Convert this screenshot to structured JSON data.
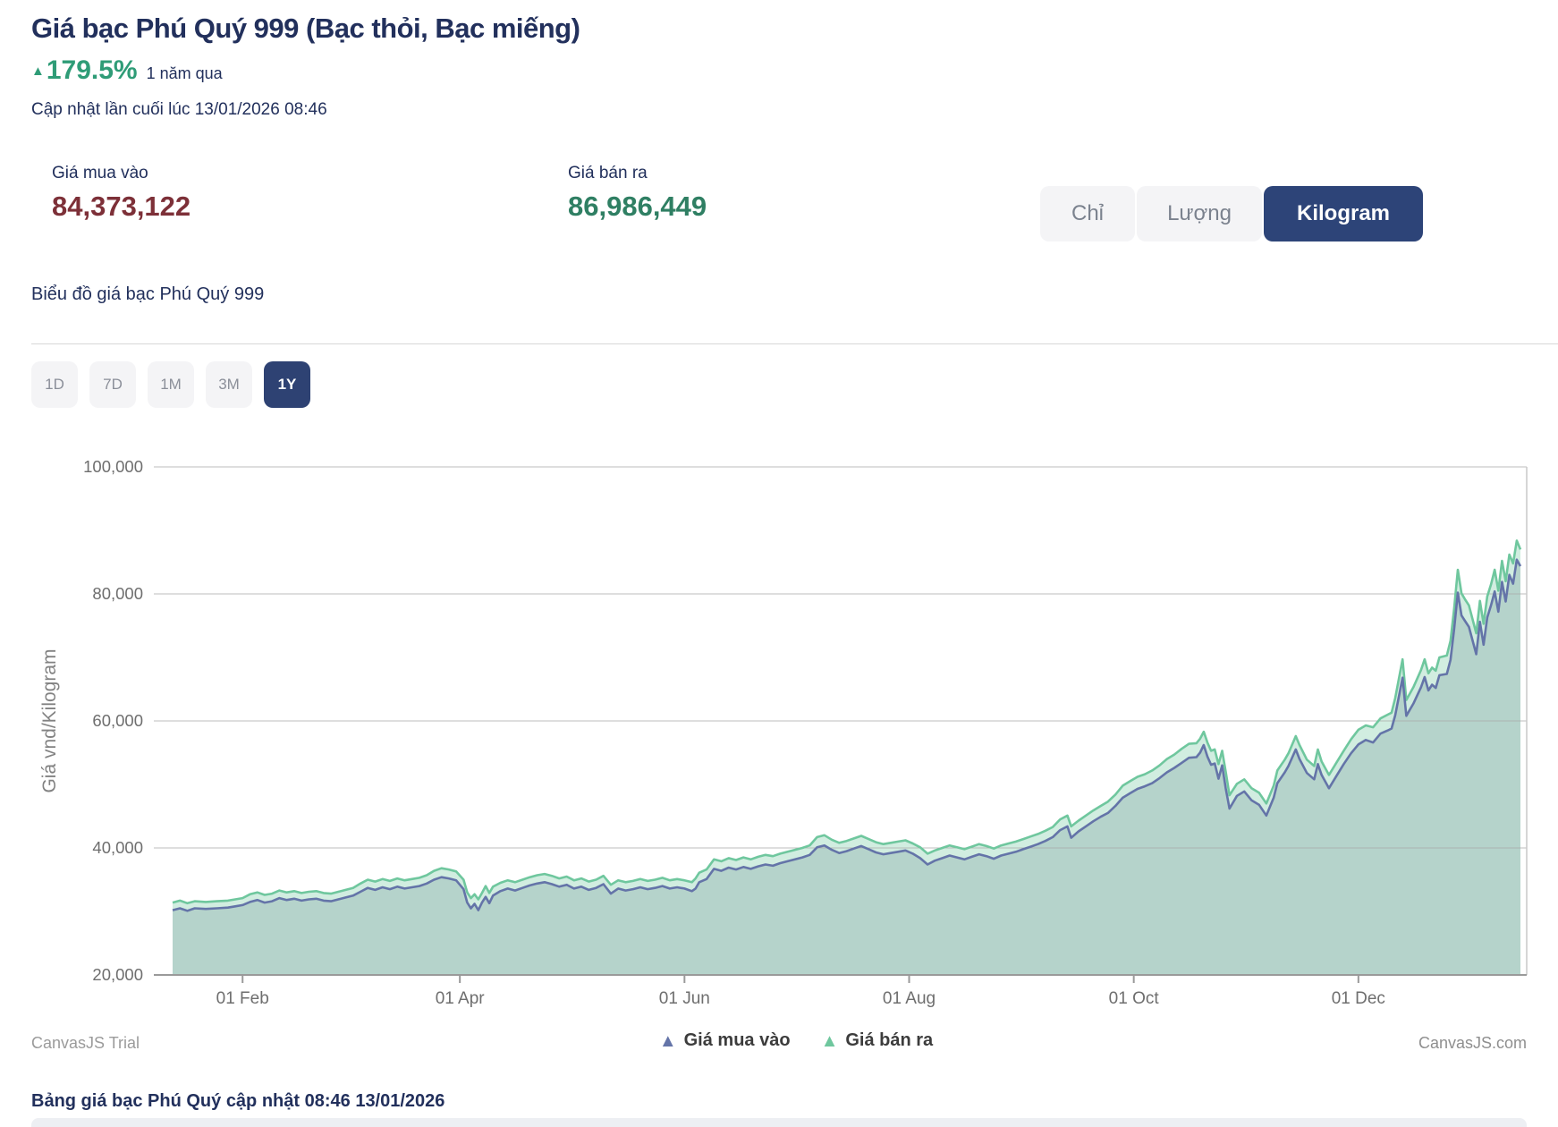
{
  "header": {
    "title": "Giá bạc Phú Quý 999 (Bạc thỏi, Bạc miếng)",
    "change_icon": "▲",
    "change_percent": "179.5%",
    "change_period": "1 năm qua",
    "last_updated": "Cập nhật lần cuối lúc 13/01/2026 08:46"
  },
  "prices": {
    "buy_label": "Giá mua vào",
    "buy_value": "84,373,122",
    "sell_label": "Giá bán ra",
    "sell_value": "86,986,449"
  },
  "unit_toggle": {
    "options": [
      {
        "label": "Chỉ",
        "active": false
      },
      {
        "label": "Lượng",
        "active": false
      },
      {
        "label": "Kilogram",
        "active": true
      }
    ]
  },
  "chart_section": {
    "subtitle": "Biểu đồ giá bạc Phú Quý 999",
    "range_buttons": [
      {
        "label": "1D",
        "active": false
      },
      {
        "label": "7D",
        "active": false
      },
      {
        "label": "1M",
        "active": false
      },
      {
        "label": "3M",
        "active": false
      },
      {
        "label": "1Y",
        "active": true
      }
    ],
    "watermark_left": "CanvasJS Trial",
    "watermark_right": "CanvasJS.com"
  },
  "footer": {
    "table_caption": "Bảng giá bạc Phú Quý cập nhật 08:46 13/01/2026"
  },
  "colors": {
    "accent_navy": "#2d4478",
    "buy_line": "#6474a8",
    "sell_line": "#6fc79e",
    "buy_value_red": "#7d3038",
    "sell_value_green": "#2f7f63",
    "change_green": "#2f9c77"
  },
  "chart_data": {
    "type": "area",
    "title": "",
    "xlabel": "",
    "ylabel": "Giá vnd/Kilogram",
    "ylim": [
      20000,
      100000
    ],
    "y_ticks": [
      20000,
      40000,
      60000,
      80000,
      100000
    ],
    "grid": true,
    "legend_position": "bottom-center",
    "x_unit": "days since 2025-01-13",
    "xlim": [
      0,
      366
    ],
    "x_ticks": [
      {
        "day": 19,
        "label": "01 Feb"
      },
      {
        "day": 78,
        "label": "01 Apr"
      },
      {
        "day": 139,
        "label": "01 Jun"
      },
      {
        "day": 200,
        "label": "01 Aug"
      },
      {
        "day": 261,
        "label": "01 Oct"
      },
      {
        "day": 322,
        "label": "01 Dec"
      }
    ],
    "legend": [
      {
        "marker": "▲",
        "name": "Giá mua vào",
        "color": "#6474a8"
      },
      {
        "marker": "▲",
        "name": "Giá bán ra",
        "color": "#6fc79e"
      }
    ],
    "series_meta": [
      {
        "name": "Giá mua vào",
        "key": "buy",
        "line_color": "#6474a8",
        "fill_color": "rgba(158,189,186,0.55)"
      },
      {
        "name": "Giá bán ra",
        "key": "sell",
        "line_color": "#6fc79e",
        "fill_color": "rgba(111,199,158,0.32)"
      }
    ],
    "points_format": [
      "day",
      "buy",
      "sell"
    ],
    "points": [
      [
        0,
        30200,
        31400
      ],
      [
        2,
        30500,
        31700
      ],
      [
        4,
        30100,
        31300
      ],
      [
        6,
        30500,
        31600
      ],
      [
        9,
        30400,
        31500
      ],
      [
        12,
        30500,
        31600
      ],
      [
        15,
        30600,
        31700
      ],
      [
        17,
        30800,
        31900
      ],
      [
        19,
        31000,
        32100
      ],
      [
        21,
        31500,
        32700
      ],
      [
        23,
        31800,
        33000
      ],
      [
        25,
        31400,
        32600
      ],
      [
        27,
        31600,
        32800
      ],
      [
        29,
        32100,
        33300
      ],
      [
        31,
        31800,
        33000
      ],
      [
        33,
        32000,
        33200
      ],
      [
        35,
        31700,
        32900
      ],
      [
        37,
        31900,
        33100
      ],
      [
        39,
        32000,
        33200
      ],
      [
        41,
        31700,
        32900
      ],
      [
        43,
        31600,
        32800
      ],
      [
        45,
        31900,
        33100
      ],
      [
        47,
        32200,
        33400
      ],
      [
        49,
        32500,
        33700
      ],
      [
        51,
        33100,
        34400
      ],
      [
        53,
        33700,
        35000
      ],
      [
        55,
        33400,
        34700
      ],
      [
        57,
        33800,
        35100
      ],
      [
        59,
        33500,
        34800
      ],
      [
        61,
        33900,
        35200
      ],
      [
        63,
        33600,
        34900
      ],
      [
        65,
        33800,
        35100
      ],
      [
        67,
        34000,
        35300
      ],
      [
        69,
        34400,
        35700
      ],
      [
        71,
        35000,
        36400
      ],
      [
        73,
        35400,
        36800
      ],
      [
        75,
        35200,
        36600
      ],
      [
        77,
        34900,
        36300
      ],
      [
        79,
        33500,
        35000
      ],
      [
        80,
        31400,
        33000
      ],
      [
        81,
        30500,
        32100
      ],
      [
        82,
        31200,
        32700
      ],
      [
        83,
        30200,
        31900
      ],
      [
        84,
        31400,
        32900
      ],
      [
        85,
        32300,
        34000
      ],
      [
        86,
        31300,
        32900
      ],
      [
        87,
        32500,
        33900
      ],
      [
        89,
        33200,
        34500
      ],
      [
        91,
        33600,
        34900
      ],
      [
        93,
        33300,
        34600
      ],
      [
        95,
        33700,
        35000
      ],
      [
        97,
        34100,
        35400
      ],
      [
        99,
        34400,
        35700
      ],
      [
        101,
        34600,
        35900
      ],
      [
        103,
        34300,
        35600
      ],
      [
        105,
        33900,
        35200
      ],
      [
        107,
        34200,
        35500
      ],
      [
        109,
        33600,
        34900
      ],
      [
        111,
        33900,
        35200
      ],
      [
        113,
        33400,
        34700
      ],
      [
        115,
        33700,
        35000
      ],
      [
        117,
        34300,
        35600
      ],
      [
        119,
        32800,
        34200
      ],
      [
        121,
        33600,
        34900
      ],
      [
        123,
        33300,
        34600
      ],
      [
        125,
        33500,
        34800
      ],
      [
        127,
        33800,
        35100
      ],
      [
        129,
        33500,
        34800
      ],
      [
        131,
        33700,
        35000
      ],
      [
        133,
        34000,
        35300
      ],
      [
        135,
        33600,
        34900
      ],
      [
        137,
        33800,
        35100
      ],
      [
        139,
        33600,
        34900
      ],
      [
        141,
        33200,
        34600
      ],
      [
        142,
        33600,
        35200
      ],
      [
        143,
        34600,
        36100
      ],
      [
        145,
        35100,
        36600
      ],
      [
        147,
        36700,
        38200
      ],
      [
        149,
        36400,
        37900
      ],
      [
        151,
        36900,
        38400
      ],
      [
        153,
        36600,
        38100
      ],
      [
        155,
        37000,
        38500
      ],
      [
        157,
        36700,
        38200
      ],
      [
        159,
        37100,
        38600
      ],
      [
        161,
        37400,
        38900
      ],
      [
        163,
        37200,
        38700
      ],
      [
        165,
        37600,
        39100
      ],
      [
        167,
        37900,
        39400
      ],
      [
        169,
        38200,
        39700
      ],
      [
        171,
        38500,
        40000
      ],
      [
        173,
        38900,
        40400
      ],
      [
        175,
        40100,
        41700
      ],
      [
        177,
        40400,
        42000
      ],
      [
        179,
        39700,
        41300
      ],
      [
        181,
        39200,
        40800
      ],
      [
        183,
        39500,
        41100
      ],
      [
        185,
        39900,
        41500
      ],
      [
        187,
        40300,
        41900
      ],
      [
        189,
        39800,
        41400
      ],
      [
        191,
        39300,
        40900
      ],
      [
        193,
        39000,
        40600
      ],
      [
        195,
        39200,
        40800
      ],
      [
        197,
        39400,
        41000
      ],
      [
        199,
        39600,
        41200
      ],
      [
        201,
        39100,
        40700
      ],
      [
        203,
        38400,
        40100
      ],
      [
        205,
        37400,
        39100
      ],
      [
        207,
        38000,
        39600
      ],
      [
        209,
        38400,
        40000
      ],
      [
        211,
        38800,
        40400
      ],
      [
        213,
        38500,
        40100
      ],
      [
        215,
        38200,
        39800
      ],
      [
        217,
        38600,
        40200
      ],
      [
        219,
        39000,
        40600
      ],
      [
        221,
        38700,
        40300
      ],
      [
        223,
        38300,
        39900
      ],
      [
        225,
        38800,
        40400
      ],
      [
        227,
        39100,
        40700
      ],
      [
        229,
        39400,
        41000
      ],
      [
        231,
        39800,
        41400
      ],
      [
        233,
        40200,
        41800
      ],
      [
        235,
        40600,
        42200
      ],
      [
        237,
        41100,
        42700
      ],
      [
        239,
        41700,
        43300
      ],
      [
        241,
        42800,
        44500
      ],
      [
        243,
        43400,
        45100
      ],
      [
        244,
        41600,
        43400
      ],
      [
        246,
        42600,
        44300
      ],
      [
        248,
        43400,
        45100
      ],
      [
        250,
        44200,
        45900
      ],
      [
        252,
        44900,
        46600
      ],
      [
        254,
        45500,
        47300
      ],
      [
        256,
        46600,
        48400
      ],
      [
        258,
        47900,
        49800
      ],
      [
        260,
        48600,
        50500
      ],
      [
        262,
        49300,
        51200
      ],
      [
        264,
        49700,
        51600
      ],
      [
        266,
        50200,
        52200
      ],
      [
        268,
        51000,
        53000
      ],
      [
        270,
        51900,
        54000
      ],
      [
        272,
        52600,
        54700
      ],
      [
        274,
        53400,
        55600
      ],
      [
        276,
        54200,
        56400
      ],
      [
        278,
        54300,
        56500
      ],
      [
        279,
        55000,
        57200
      ],
      [
        280,
        56200,
        58300
      ],
      [
        281,
        54400,
        56600
      ],
      [
        282,
        53100,
        55300
      ],
      [
        283,
        53300,
        55500
      ],
      [
        284,
        50900,
        53200
      ],
      [
        285,
        53000,
        55300
      ],
      [
        286,
        49300,
        51900
      ],
      [
        287,
        46200,
        48300
      ],
      [
        289,
        48200,
        50100
      ],
      [
        291,
        48900,
        50800
      ],
      [
        293,
        47500,
        49400
      ],
      [
        295,
        46800,
        48700
      ],
      [
        297,
        45100,
        47000
      ],
      [
        299,
        47900,
        49800
      ],
      [
        300,
        50200,
        52200
      ],
      [
        302,
        51900,
        53900
      ],
      [
        303,
        52900,
        54900
      ],
      [
        305,
        55500,
        57600
      ],
      [
        306,
        54000,
        56200
      ],
      [
        308,
        51800,
        53900
      ],
      [
        310,
        50800,
        52900
      ],
      [
        311,
        53200,
        55500
      ],
      [
        312,
        51500,
        53600
      ],
      [
        314,
        49400,
        51500
      ],
      [
        316,
        51300,
        53400
      ],
      [
        318,
        53200,
        55300
      ],
      [
        320,
        54900,
        57100
      ],
      [
        322,
        56300,
        58600
      ],
      [
        324,
        57000,
        59300
      ],
      [
        326,
        56600,
        59000
      ],
      [
        328,
        58000,
        60400
      ],
      [
        330,
        58500,
        61000
      ],
      [
        331,
        58800,
        61300
      ],
      [
        332,
        60900,
        63600
      ],
      [
        334,
        66800,
        69700
      ],
      [
        335,
        60800,
        63300
      ],
      [
        337,
        62800,
        65400
      ],
      [
        339,
        65300,
        68000
      ],
      [
        340,
        66900,
        69700
      ],
      [
        341,
        64800,
        67500
      ],
      [
        342,
        65700,
        68400
      ],
      [
        343,
        65200,
        67900
      ],
      [
        344,
        67200,
        70000
      ],
      [
        346,
        67400,
        70300
      ],
      [
        347,
        69600,
        72600
      ],
      [
        348,
        74500,
        77700
      ],
      [
        349,
        80200,
        83800
      ],
      [
        350,
        76600,
        80100
      ],
      [
        351,
        75700,
        79100
      ],
      [
        352,
        74800,
        78200
      ],
      [
        354,
        70500,
        73800
      ],
      [
        355,
        75600,
        78900
      ],
      [
        356,
        72000,
        75300
      ],
      [
        357,
        76300,
        79600
      ],
      [
        358,
        78200,
        81500
      ],
      [
        359,
        80400,
        83800
      ],
      [
        360,
        77200,
        80500
      ],
      [
        361,
        81900,
        85200
      ],
      [
        362,
        78800,
        82000
      ],
      [
        363,
        83000,
        86200
      ],
      [
        364,
        81600,
        84800
      ],
      [
        365,
        85400,
        88400
      ],
      [
        366,
        84373,
        86986
      ]
    ]
  }
}
